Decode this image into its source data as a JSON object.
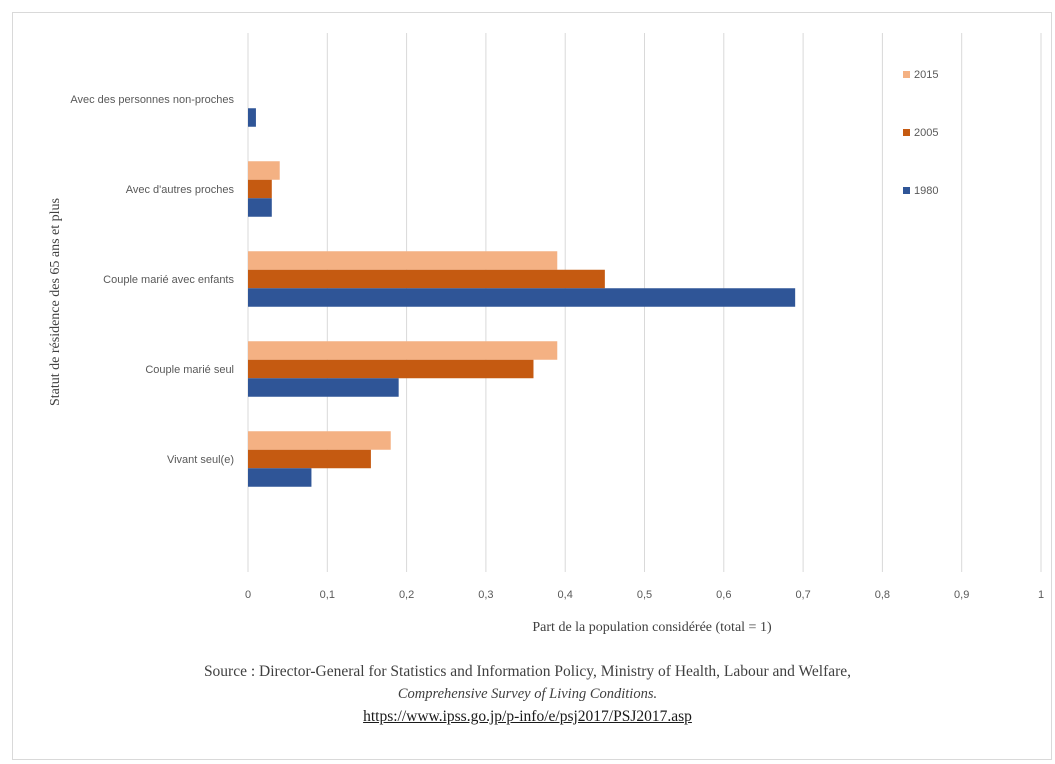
{
  "chart_data": {
    "type": "bar",
    "orientation": "horizontal",
    "title": "",
    "xlabel": "Part de la population considérée (total = 1)",
    "ylabel": "Statut de résidence des 65 ans et plus",
    "categories": [
      "Avec des personnes non-proches",
      "Avec d'autres proches",
      "Couple marié avec enfants",
      "Couple marié seul",
      "Vivant seul(e)"
    ],
    "series": [
      {
        "name": "2015",
        "color": "#f4b183",
        "values": [
          0,
          0.04,
          0.39,
          0.39,
          0.18
        ]
      },
      {
        "name": "2005",
        "color": "#c55a11",
        "values": [
          0,
          0.03,
          0.45,
          0.36,
          0.155
        ]
      },
      {
        "name": "1980",
        "color": "#2f5597",
        "values": [
          0.01,
          0.03,
          0.69,
          0.19,
          0.08
        ]
      }
    ],
    "xlim": [
      0,
      1
    ],
    "xticks": [
      "0",
      "0,1",
      "0,2",
      "0,3",
      "0,4",
      "0,5",
      "0,6",
      "0,7",
      "0,8",
      "0,9",
      "1"
    ],
    "grid": true,
    "legend": "top-right"
  },
  "source": {
    "line1": "Source : Director-General for Statistics and Information Policy, Ministry of Health, Labour and Welfare,",
    "line2": "Comprehensive Survey of Living Conditions.",
    "line3": "https://www.ipss.go.jp/p-info/e/psj2017/PSJ2017.asp"
  }
}
